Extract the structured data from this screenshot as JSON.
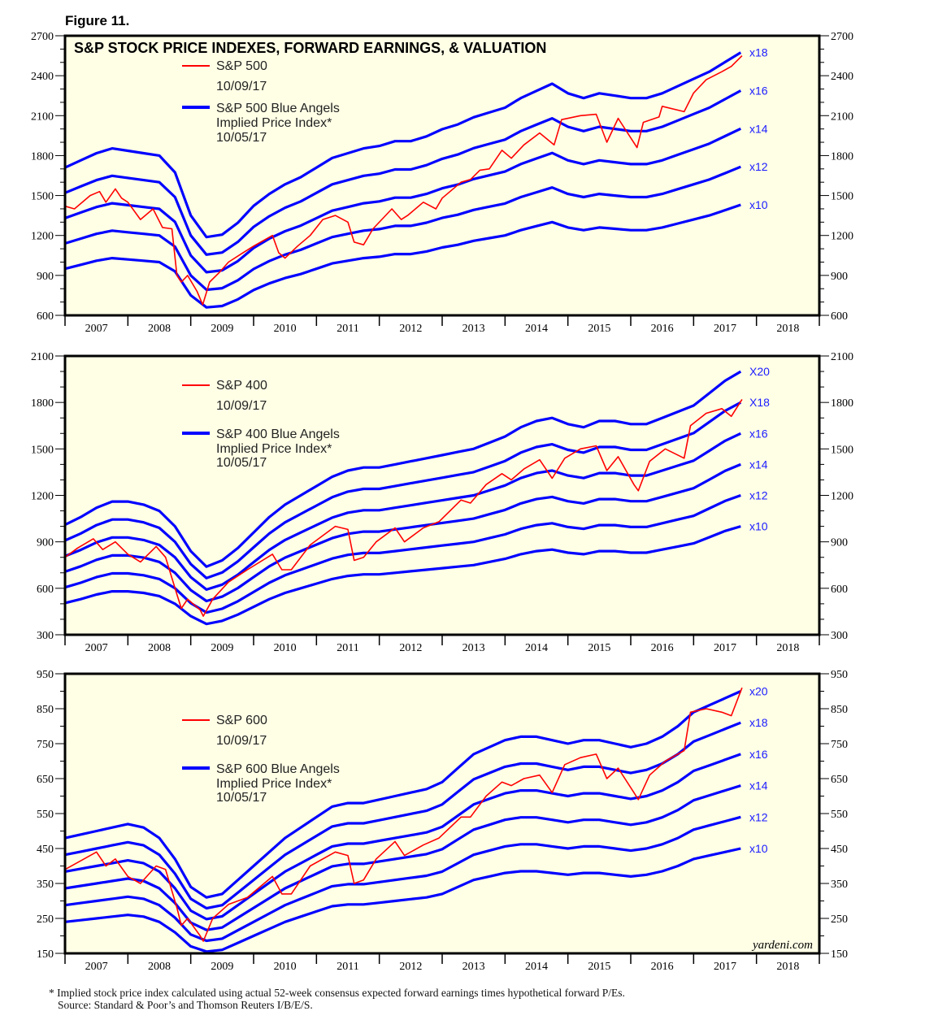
{
  "figure_label": "Figure 11.",
  "footnote": "* Implied stock price index calculated using actual 52-week consensus expected forward earnings times hypothetical forward P/Es.",
  "source": "Source: Standard & Poor’s and Thomson Reuters I/B/E/S.",
  "brand": "yardeni.com",
  "colors": {
    "price": "#ff0000",
    "angels": "#0000ff",
    "plot_bg": "#ffffe6",
    "multiple_label": "#1a1aff"
  },
  "chart_data": [
    {
      "type": "line",
      "title": "S&P STOCK PRICE INDEXES, FORWARD EARNINGS, & VALUATION",
      "xlim": [
        2007,
        2019
      ],
      "x_tick_labels": [
        "2007",
        "2008",
        "2009",
        "2010",
        "2011",
        "2012",
        "2013",
        "2014",
        "2015",
        "2016",
        "2017",
        "2018"
      ],
      "ylim": [
        600,
        2700
      ],
      "y_ticks": [
        600,
        900,
        1200,
        1500,
        1800,
        2100,
        2400,
        2700
      ],
      "y_minor_step": 100,
      "legend": {
        "price_name": "S&P 500",
        "price_date": "10/09/17",
        "angels_name": "S&P 500 Blue Angels",
        "angels_sub": "Implied Price Index*",
        "angels_date": "10/05/17"
      },
      "multiples": [
        {
          "m": 18,
          "label": "x18"
        },
        {
          "m": 16,
          "label": "x16"
        },
        {
          "m": 14,
          "label": "x14"
        },
        {
          "m": 12,
          "label": "x12"
        },
        {
          "m": 10,
          "label": "x10"
        }
      ],
      "forward_earnings": {
        "start": 2007.0,
        "step": 0.25,
        "values": [
          95,
          98,
          101,
          103,
          102,
          101,
          100,
          93,
          75,
          66,
          67,
          72,
          79,
          84,
          88,
          91,
          95,
          99,
          101,
          103,
          104,
          106,
          106,
          108,
          111,
          113,
          116,
          118,
          120,
          124,
          127,
          130,
          126,
          124,
          126,
          125,
          124,
          124,
          126,
          129,
          132,
          135,
          139,
          143
        ]
      },
      "price": {
        "x": [
          2007.0,
          2007.15,
          2007.4,
          2007.55,
          2007.65,
          2007.8,
          2007.9,
          2008.0,
          2008.2,
          2008.4,
          2008.55,
          2008.7,
          2008.78,
          2008.85,
          2008.95,
          2009.1,
          2009.19,
          2009.3,
          2009.45,
          2009.6,
          2009.8,
          2010.0,
          2010.3,
          2010.4,
          2010.5,
          2010.7,
          2010.9,
          2011.1,
          2011.3,
          2011.5,
          2011.6,
          2011.75,
          2011.9,
          2012.2,
          2012.35,
          2012.45,
          2012.7,
          2012.9,
          2013.0,
          2013.3,
          2013.45,
          2013.6,
          2013.75,
          2013.95,
          2014.1,
          2014.3,
          2014.55,
          2014.78,
          2014.9,
          2015.2,
          2015.45,
          2015.62,
          2015.8,
          2016.1,
          2016.2,
          2016.45,
          2016.5,
          2016.85,
          2017.0,
          2017.2,
          2017.45,
          2017.6,
          2017.77
        ],
        "y": [
          1420,
          1400,
          1500,
          1530,
          1450,
          1550,
          1480,
          1450,
          1320,
          1400,
          1260,
          1250,
          900,
          850,
          900,
          780,
          680,
          850,
          920,
          1000,
          1060,
          1120,
          1200,
          1070,
          1030,
          1120,
          1200,
          1320,
          1350,
          1300,
          1150,
          1130,
          1250,
          1400,
          1320,
          1350,
          1450,
          1400,
          1480,
          1600,
          1620,
          1690,
          1700,
          1840,
          1780,
          1880,
          1970,
          1880,
          2070,
          2100,
          2110,
          1900,
          2080,
          1860,
          2050,
          2090,
          2170,
          2130,
          2270,
          2370,
          2430,
          2470,
          2550
        ]
      }
    },
    {
      "type": "line",
      "xlim": [
        2007,
        2019
      ],
      "x_tick_labels": [
        "2007",
        "2008",
        "2009",
        "2010",
        "2011",
        "2012",
        "2013",
        "2014",
        "2015",
        "2016",
        "2017",
        "2018"
      ],
      "ylim": [
        300,
        2100
      ],
      "y_ticks": [
        300,
        600,
        900,
        1200,
        1500,
        1800,
        2100
      ],
      "y_minor_step": 100,
      "legend": {
        "price_name": "S&P 400",
        "price_date": "10/09/17",
        "angels_name": "S&P 400 Blue Angels",
        "angels_sub": "Implied Price Index*",
        "angels_date": "10/05/17"
      },
      "multiples": [
        {
          "m": 20,
          "label": "X20"
        },
        {
          "m": 18,
          "label": "X18"
        },
        {
          "m": 16,
          "label": "x16"
        },
        {
          "m": 14,
          "label": "x14"
        },
        {
          "m": 12,
          "label": "x12"
        },
        {
          "m": 10,
          "label": "x10"
        }
      ],
      "forward_earnings": {
        "start": 2007.0,
        "step": 0.25,
        "values": [
          50.5,
          53,
          56,
          58,
          58,
          57,
          55,
          50,
          42,
          37,
          39,
          43,
          48,
          53,
          57,
          60,
          63,
          66,
          68,
          69,
          69,
          70,
          71,
          72,
          73,
          74,
          75,
          77,
          79,
          82,
          84,
          85,
          83,
          82,
          84,
          84,
          83,
          83,
          85,
          87,
          89,
          93,
          97,
          100
        ]
      },
      "price": {
        "x": [
          2007.0,
          2007.2,
          2007.45,
          2007.6,
          2007.8,
          2008.0,
          2008.2,
          2008.45,
          2008.6,
          2008.78,
          2008.85,
          2008.95,
          2009.15,
          2009.2,
          2009.35,
          2009.6,
          2009.9,
          2010.3,
          2010.45,
          2010.6,
          2010.9,
          2011.3,
          2011.5,
          2011.6,
          2011.75,
          2011.95,
          2012.25,
          2012.4,
          2012.7,
          2012.95,
          2013.3,
          2013.45,
          2013.7,
          2013.95,
          2014.1,
          2014.3,
          2014.55,
          2014.75,
          2014.95,
          2015.2,
          2015.45,
          2015.62,
          2015.8,
          2016.05,
          2016.12,
          2016.3,
          2016.55,
          2016.85,
          2016.95,
          2017.2,
          2017.45,
          2017.6,
          2017.77
        ],
        "y": [
          800,
          860,
          920,
          850,
          900,
          820,
          770,
          870,
          800,
          560,
          470,
          530,
          460,
          420,
          530,
          640,
          720,
          820,
          720,
          720,
          880,
          1000,
          980,
          780,
          800,
          900,
          990,
          900,
          990,
          1030,
          1170,
          1150,
          1270,
          1340,
          1300,
          1370,
          1430,
          1310,
          1440,
          1500,
          1520,
          1360,
          1450,
          1270,
          1230,
          1420,
          1500,
          1440,
          1650,
          1730,
          1760,
          1710,
          1820
        ]
      }
    },
    {
      "type": "line",
      "xlim": [
        2007,
        2019
      ],
      "x_tick_labels": [
        "2007",
        "2008",
        "2009",
        "2010",
        "2011",
        "2012",
        "2013",
        "2014",
        "2015",
        "2016",
        "2017",
        "2018"
      ],
      "ylim": [
        150,
        950
      ],
      "y_ticks": [
        150,
        250,
        350,
        450,
        550,
        650,
        750,
        850,
        950
      ],
      "y_minor_step": 50,
      "legend": {
        "price_name": "S&P 600",
        "price_date": "10/09/17",
        "angels_name": "S&P 600 Blue Angels",
        "angels_sub": "Implied Price Index*",
        "angels_date": "10/05/17"
      },
      "multiples": [
        {
          "m": 20,
          "label": "x20"
        },
        {
          "m": 18,
          "label": "x18"
        },
        {
          "m": 16,
          "label": "x16"
        },
        {
          "m": 14,
          "label": "x14"
        },
        {
          "m": 12,
          "label": "x12"
        },
        {
          "m": 10,
          "label": "x10"
        }
      ],
      "forward_earnings": {
        "start": 2007.0,
        "step": 0.25,
        "values": [
          24,
          24.5,
          25,
          25.5,
          26,
          25.5,
          24,
          21,
          17,
          15.5,
          16,
          18,
          20,
          22,
          24,
          25.5,
          27,
          28.5,
          29,
          29,
          29.5,
          30,
          30.5,
          31,
          32,
          34,
          36,
          37,
          38,
          38.5,
          38.5,
          38,
          37.5,
          38,
          38,
          37.5,
          37,
          37.5,
          38.5,
          40,
          42,
          43,
          44,
          45
        ]
      },
      "price": {
        "x": [
          2007.0,
          2007.3,
          2007.5,
          2007.65,
          2007.8,
          2008.0,
          2008.2,
          2008.45,
          2008.6,
          2008.78,
          2008.85,
          2008.95,
          2009.15,
          2009.2,
          2009.35,
          2009.6,
          2009.9,
          2010.3,
          2010.45,
          2010.6,
          2010.9,
          2011.3,
          2011.5,
          2011.6,
          2011.75,
          2011.95,
          2012.25,
          2012.4,
          2012.7,
          2012.95,
          2013.3,
          2013.45,
          2013.7,
          2013.95,
          2014.1,
          2014.3,
          2014.55,
          2014.75,
          2014.95,
          2015.2,
          2015.45,
          2015.62,
          2015.8,
          2016.05,
          2016.12,
          2016.3,
          2016.55,
          2016.85,
          2016.95,
          2017.2,
          2017.45,
          2017.6,
          2017.77
        ],
        "y": [
          390,
          420,
          440,
          400,
          420,
          370,
          350,
          400,
          390,
          280,
          230,
          250,
          200,
          185,
          250,
          290,
          310,
          370,
          320,
          320,
          400,
          440,
          430,
          350,
          360,
          420,
          470,
          430,
          460,
          480,
          540,
          540,
          600,
          640,
          630,
          650,
          660,
          610,
          690,
          710,
          720,
          650,
          680,
          610,
          590,
          660,
          700,
          730,
          840,
          850,
          840,
          830,
          910
        ]
      }
    }
  ]
}
